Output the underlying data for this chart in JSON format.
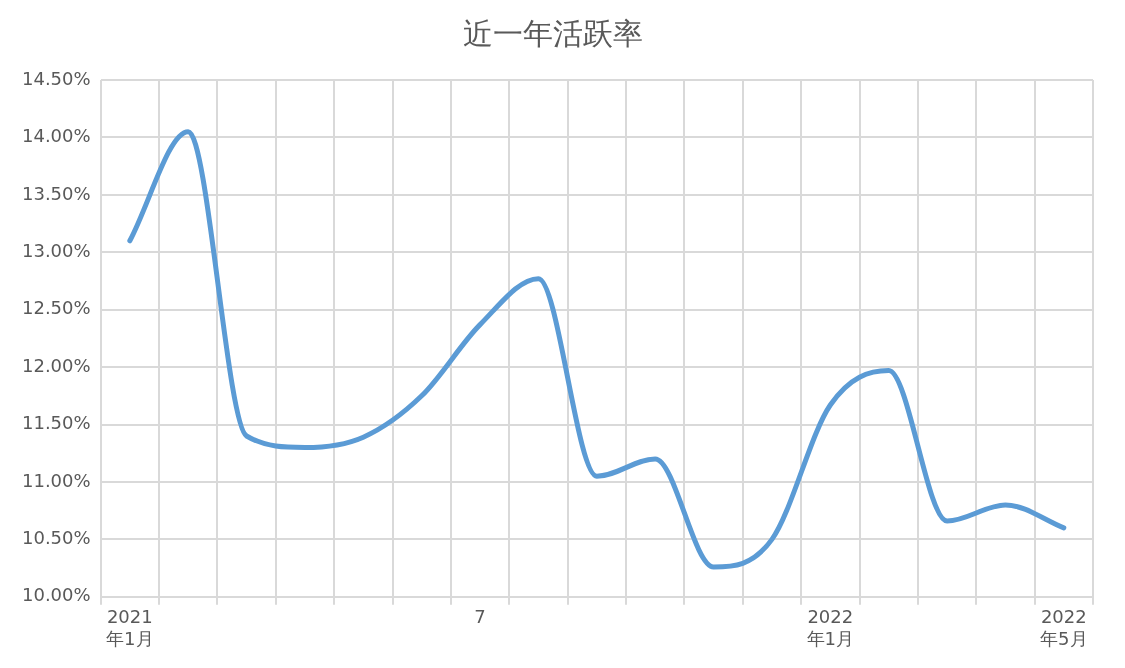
{
  "chart_data": {
    "type": "line",
    "title": "近一年活跃率",
    "categories": [
      "2021\n年1月",
      null,
      null,
      null,
      null,
      null,
      "7",
      null,
      null,
      null,
      null,
      null,
      "2022\n年1月",
      null,
      null,
      null,
      "2022\n年5月"
    ],
    "series": [
      {
        "color": "#5b9bd5",
        "values": [
          13.1,
          14.05,
          11.4,
          11.3,
          11.39,
          11.75,
          12.37,
          12.77,
          11.05,
          11.2,
          10.26,
          10.5,
          11.67,
          11.97,
          10.66,
          10.8,
          10.6
        ]
      }
    ],
    "ylim": [
      10,
      14.5
    ],
    "yticks": [
      {
        "value": 10,
        "label": "10.00%"
      },
      {
        "value": 10.5,
        "label": "10.50%"
      },
      {
        "value": 11,
        "label": "11.00%"
      },
      {
        "value": 11.5,
        "label": "11.50%"
      },
      {
        "value": 12,
        "label": "12.00%"
      },
      {
        "value": 12.5,
        "label": "12.50%"
      },
      {
        "value": 13,
        "label": "13.00%"
      },
      {
        "value": 13.5,
        "label": "13.50%"
      },
      {
        "value": 14,
        "label": "14.00%"
      },
      {
        "value": 14.5,
        "label": "14.50%"
      }
    ],
    "grid": true,
    "legend": false,
    "marker": "none",
    "line_style": "solid"
  }
}
